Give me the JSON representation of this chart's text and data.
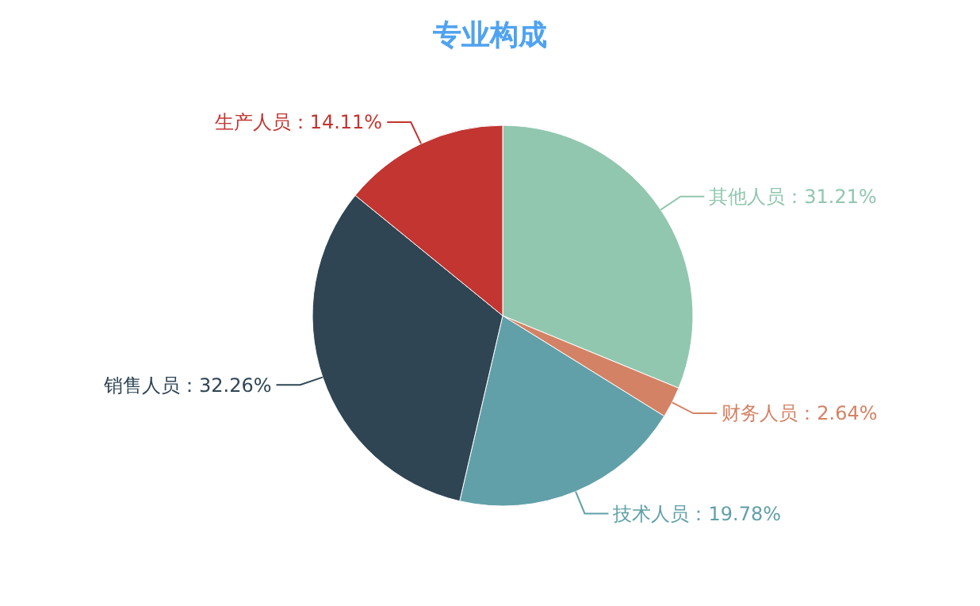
{
  "chart_data": {
    "type": "pie",
    "title": "专业构成",
    "categories": [
      "其他人员",
      "财务人员",
      "技术人员",
      "销售人员",
      "生产人员"
    ],
    "values": [
      31.21,
      2.64,
      19.78,
      32.26,
      14.11
    ],
    "value_labels": [
      "31.21%",
      "2.64%",
      "19.78%",
      "32.26%",
      "14.11%"
    ],
    "colors": [
      "#91c7ae",
      "#d48265",
      "#61a0a8",
      "#2f4554",
      "#c23531"
    ]
  }
}
